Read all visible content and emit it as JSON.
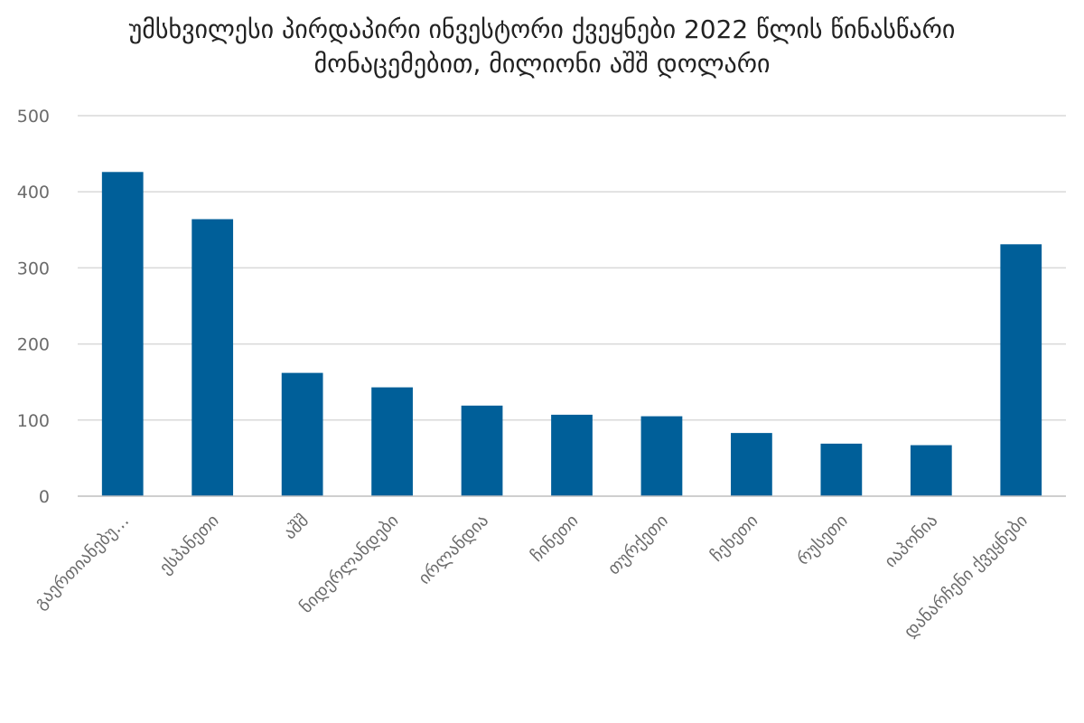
{
  "chart_data": {
    "type": "bar",
    "title_line1": "უმსხვილესი პირდაპირი ინვესტორი ქვეყნები 2022 წლის წინასწარი",
    "title_line2": "მონაცემებით, მილიონი აშშ დოლარი",
    "categories": [
      "გაერთიანებუ…",
      "ესპანეთი",
      "აშშ",
      "ნიდერლანდები",
      "ირლანდია",
      "ჩინეთი",
      "თურქეთი",
      "ჩეხეთი",
      "რუსეთი",
      "იაპონია",
      "დანარჩენი ქვეყნები"
    ],
    "values": [
      426,
      364,
      162,
      143,
      119,
      107,
      105,
      83,
      69,
      67,
      331
    ],
    "ylim": [
      0,
      500
    ],
    "yticks": [
      0,
      100,
      200,
      300,
      400,
      500
    ],
    "grid": true,
    "legend": "none",
    "bar_color": "#005f99",
    "grid_color": "#d9d9d9",
    "axis_color": "#bfbfbf"
  }
}
